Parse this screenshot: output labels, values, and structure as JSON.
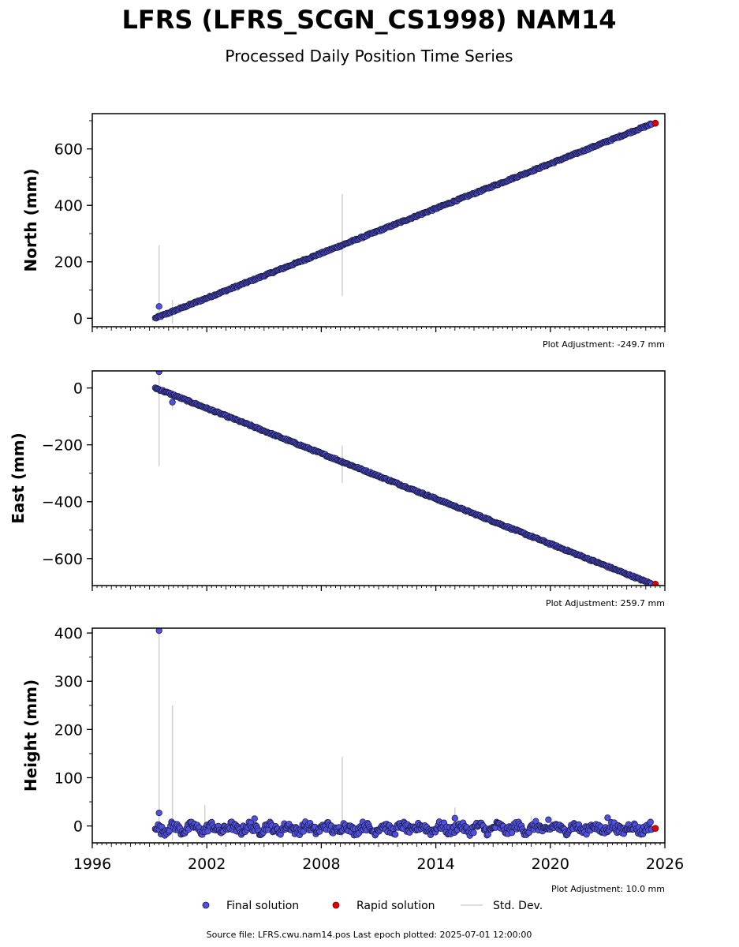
{
  "chart_data": {
    "type": "scatter",
    "title": "LFRS (LFRS_SCGN_CS1998) NAM14",
    "subtitle": "Processed Daily Position Time Series",
    "xlim": [
      1996,
      2026
    ],
    "xticks": [
      "1996",
      "2002",
      "2008",
      "2014",
      "2020",
      "2026"
    ],
    "legend": {
      "placement": "bottom-center",
      "entries": [
        "Final solution",
        "Rapid solution",
        "Std. Dev."
      ]
    },
    "colors": {
      "final": "#4f4fe0",
      "final_edge": "#1a1a3a",
      "rapid": "#e00000",
      "stddev": "#d0d0d0"
    },
    "footer": "Source file: LFRS.cwu.nam14.pos  Last epoch plotted: 2025-07-01 12:00:00",
    "panels": [
      {
        "ylabel": "North (mm)",
        "ylim": [
          -30,
          725
        ],
        "yticks": [
          "0",
          "200",
          "400",
          "600"
        ],
        "adjustment": "Plot Adjustment: -249.7 mm",
        "final_trend": {
          "x": [
            1999.3,
            2025.3
          ],
          "y": [
            0,
            688
          ]
        },
        "rapid": [
          {
            "x": 2025.5,
            "y": 691
          }
        ],
        "outliers": [
          {
            "x": 1999.5,
            "y": 42
          }
        ],
        "stddev_bars": [
          {
            "x": 1999.5,
            "low": -10,
            "high": 258
          },
          {
            "x": 2000.2,
            "low": -20,
            "high": 65
          },
          {
            "x": 2009.1,
            "low": 78,
            "high": 440
          }
        ]
      },
      {
        "ylabel": "East (mm)",
        "ylim": [
          -695,
          60
        ],
        "yticks": [
          "0",
          "−200",
          "−400",
          "−600"
        ],
        "adjustment": "Plot Adjustment: 259.7 mm",
        "final_trend": {
          "x": [
            1999.3,
            2025.3
          ],
          "y": [
            0,
            -689
          ]
        },
        "rapid": [
          {
            "x": 2025.5,
            "y": -690
          }
        ],
        "outliers": [
          {
            "x": 1999.5,
            "y": 57
          },
          {
            "x": 2000.2,
            "y": -50
          }
        ],
        "stddev_bars": [
          {
            "x": 1999.5,
            "low": -275,
            "high": 60
          },
          {
            "x": 2000.2,
            "low": -75,
            "high": -20
          },
          {
            "x": 2009.1,
            "low": -335,
            "high": -203
          }
        ]
      },
      {
        "ylabel": "Height (mm)",
        "ylim": [
          -35,
          410
        ],
        "yticks": [
          "0",
          "100",
          "200",
          "300",
          "400"
        ],
        "adjustment": "Plot Adjustment: 10.0 mm",
        "final_trend": {
          "x": [
            1999.3,
            2025.3
          ],
          "y": [
            -5,
            -5
          ]
        },
        "rapid": [
          {
            "x": 2025.5,
            "y": -5
          }
        ],
        "outliers": [
          {
            "x": 1999.5,
            "y": 405
          },
          {
            "x": 1999.5,
            "y": 27
          },
          {
            "x": 2004.5,
            "y": 15
          },
          {
            "x": 2015.0,
            "y": 16
          },
          {
            "x": 2019.9,
            "y": 13
          },
          {
            "x": 2023.0,
            "y": 17
          }
        ],
        "stddev_bars": [
          {
            "x": 1999.5,
            "low": -20,
            "high": 405
          },
          {
            "x": 2000.2,
            "low": -30,
            "high": 250
          },
          {
            "x": 2001.9,
            "low": -25,
            "high": 43
          },
          {
            "x": 2009.1,
            "low": -25,
            "high": 143
          },
          {
            "x": 2015.0,
            "low": -15,
            "high": 38
          },
          {
            "x": 2019.0,
            "low": -20,
            "high": 20
          }
        ]
      }
    ]
  }
}
